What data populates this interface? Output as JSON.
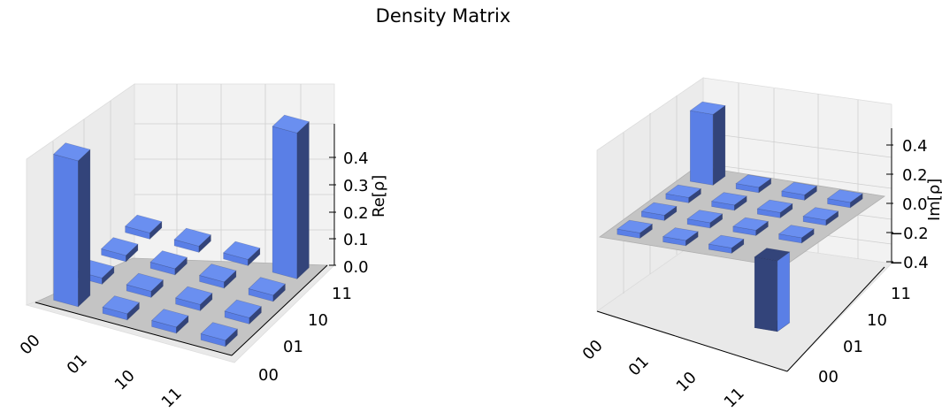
{
  "figure": {
    "title": "Density Matrix"
  },
  "chart_data": [
    {
      "type": "bar3d",
      "zlabel": "Re[ρ]",
      "row_labels": [
        "00",
        "01",
        "10",
        "11"
      ],
      "col_labels": [
        "00",
        "01",
        "10",
        "11"
      ],
      "zticks": [
        "0.0",
        "0.1",
        "0.2",
        "0.3",
        "0.4"
      ],
      "zlim": [
        0,
        0.48
      ],
      "values": [
        [
          0.5,
          0.0,
          0.0,
          0.0
        ],
        [
          0.0,
          0.0,
          0.0,
          0.0
        ],
        [
          0.0,
          0.0,
          0.0,
          0.0
        ],
        [
          0.0,
          0.0,
          0.0,
          0.5
        ]
      ],
      "grid": true,
      "colors": {
        "top": "#6a8ff0",
        "front": "#5a7fe6",
        "side": "#33447a"
      }
    },
    {
      "type": "bar3d",
      "zlabel": "Im[ρ]",
      "row_labels": [
        "00",
        "01",
        "10",
        "11"
      ],
      "col_labels": [
        "00",
        "01",
        "10",
        "11"
      ],
      "zticks": [
        "0.4",
        "0.2",
        "0.0",
        "−0.2",
        "−0.4"
      ],
      "zlim": [
        -0.5,
        0.5
      ],
      "values": [
        [
          0.0,
          0.0,
          0.0,
          0.5
        ],
        [
          0.0,
          0.0,
          0.0,
          0.0
        ],
        [
          0.0,
          0.0,
          0.0,
          0.0
        ],
        [
          -0.5,
          0.0,
          0.0,
          0.0
        ]
      ],
      "grid": true,
      "colors": {
        "top": "#6a8ff0",
        "front": "#5a7fe6",
        "side": "#33447a"
      }
    }
  ]
}
